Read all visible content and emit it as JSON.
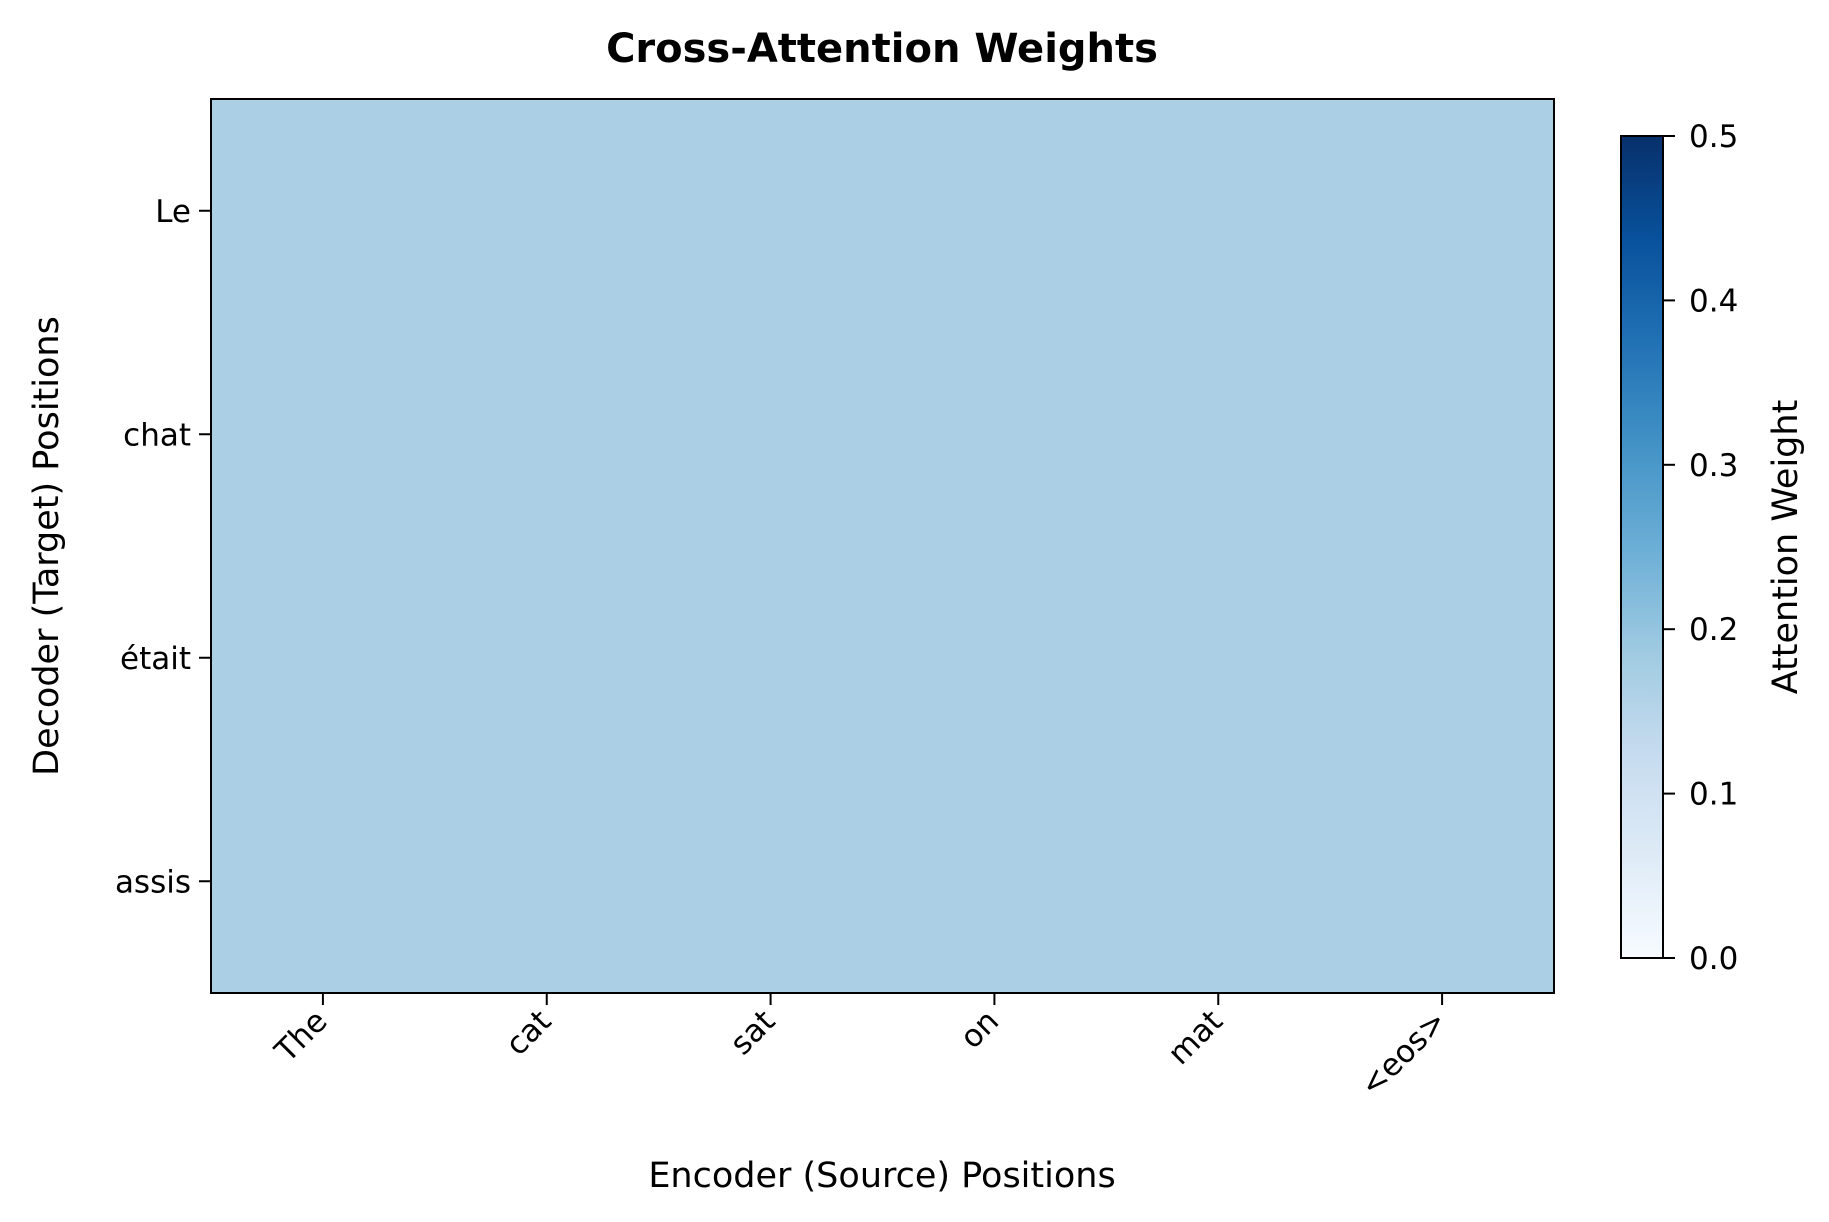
{
  "chart_data": {
    "type": "heatmap",
    "title": "Cross-Attention Weights",
    "xlabel": "Encoder (Source) Positions",
    "ylabel": "Decoder (Target) Positions",
    "x_categories": [
      "The",
      "cat",
      "sat",
      "on",
      "mat",
      "<eos>"
    ],
    "y_categories": [
      "Le",
      "chat",
      "était",
      "assis"
    ],
    "values": [
      [
        0.1667,
        0.1667,
        0.1667,
        0.1667,
        0.1667,
        0.1667
      ],
      [
        0.1667,
        0.1667,
        0.1667,
        0.1667,
        0.1667,
        0.1667
      ],
      [
        0.1667,
        0.1667,
        0.1667,
        0.1667,
        0.1667,
        0.1667
      ],
      [
        0.1667,
        0.1667,
        0.1667,
        0.1667,
        0.1667,
        0.1667
      ]
    ],
    "colorbar": {
      "label": "Attention Weight",
      "range": [
        0.0,
        0.5
      ],
      "ticks": [
        "0.0",
        "0.1",
        "0.2",
        "0.3",
        "0.4",
        "0.5"
      ],
      "colormap": "Blues"
    }
  }
}
